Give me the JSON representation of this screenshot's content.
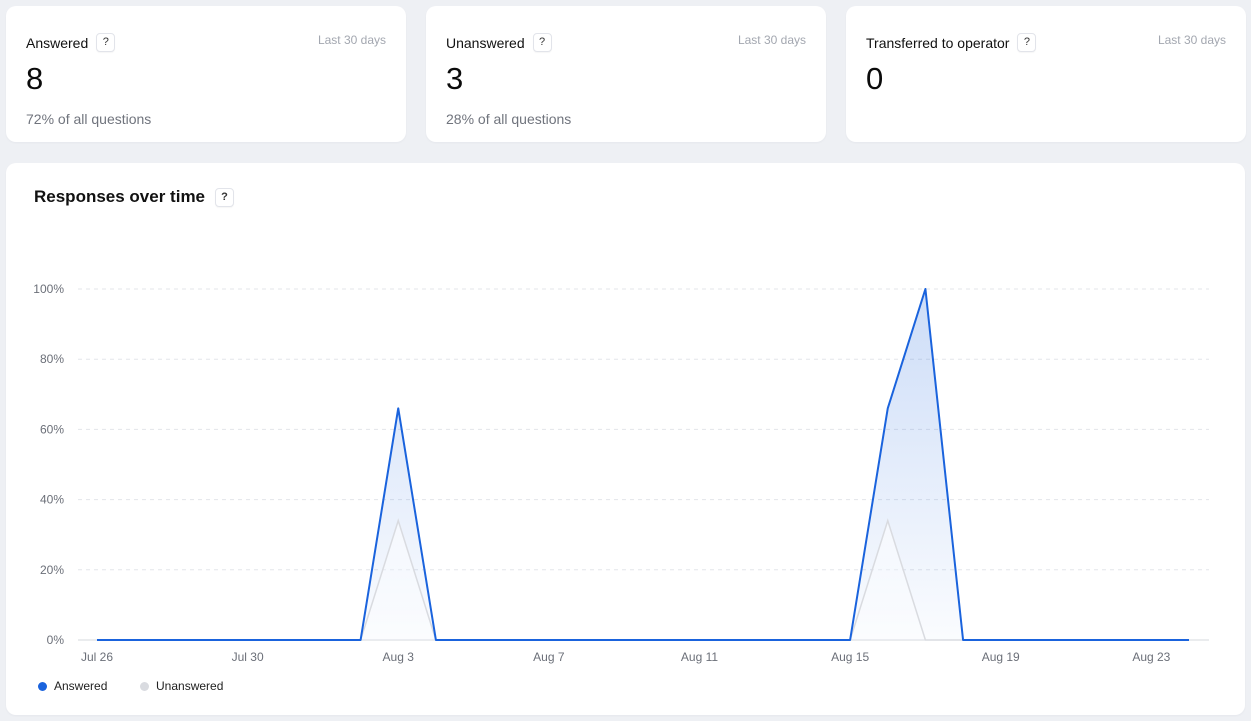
{
  "cards": [
    {
      "title": "Answered",
      "help": "?",
      "period": "Last 30 days",
      "value": "8",
      "sub": "72% of all questions"
    },
    {
      "title": "Unanswered",
      "help": "?",
      "period": "Last 30 days",
      "value": "3",
      "sub": "28% of all questions"
    },
    {
      "title": "Transferred to operator",
      "help": "?",
      "period": "Last 30 days",
      "value": "0",
      "sub": ""
    }
  ],
  "chart_card": {
    "title": "Responses over time",
    "help": "?"
  },
  "chart_data": {
    "type": "area",
    "title": "Responses over time",
    "x": [
      "Jul 26",
      "Jul 27",
      "Jul 28",
      "Jul 29",
      "Jul 30",
      "Jul 31",
      "Aug 1",
      "Aug 2",
      "Aug 3",
      "Aug 4",
      "Aug 5",
      "Aug 6",
      "Aug 7",
      "Aug 8",
      "Aug 9",
      "Aug 10",
      "Aug 11",
      "Aug 12",
      "Aug 13",
      "Aug 14",
      "Aug 15",
      "Aug 16",
      "Aug 17",
      "Aug 18",
      "Aug 19",
      "Aug 20",
      "Aug 21",
      "Aug 22",
      "Aug 23",
      "Aug 24"
    ],
    "x_tick_labels": [
      "Jul 26",
      "Jul 30",
      "Aug 3",
      "Aug 7",
      "Aug 11",
      "Aug 15",
      "Aug 19",
      "Aug 23"
    ],
    "y_tick_labels": [
      "0%",
      "20%",
      "40%",
      "60%",
      "80%",
      "100%"
    ],
    "ylim": [
      0,
      100
    ],
    "grid": true,
    "legend_position": "bottom-left",
    "series": [
      {
        "name": "Answered",
        "color": "#1a63dd",
        "values": [
          0,
          0,
          0,
          0,
          0,
          0,
          0,
          0,
          66,
          0,
          0,
          0,
          0,
          0,
          0,
          0,
          0,
          0,
          0,
          0,
          0,
          66,
          100,
          0,
          0,
          0,
          0,
          0,
          0,
          0
        ]
      },
      {
        "name": "Unanswered",
        "color": "#d9dbe0",
        "values": [
          0,
          0,
          0,
          0,
          0,
          0,
          0,
          0,
          34,
          0,
          0,
          0,
          0,
          0,
          0,
          0,
          0,
          0,
          0,
          0,
          0,
          34,
          0,
          0,
          0,
          0,
          0,
          0,
          0,
          0
        ]
      }
    ]
  }
}
